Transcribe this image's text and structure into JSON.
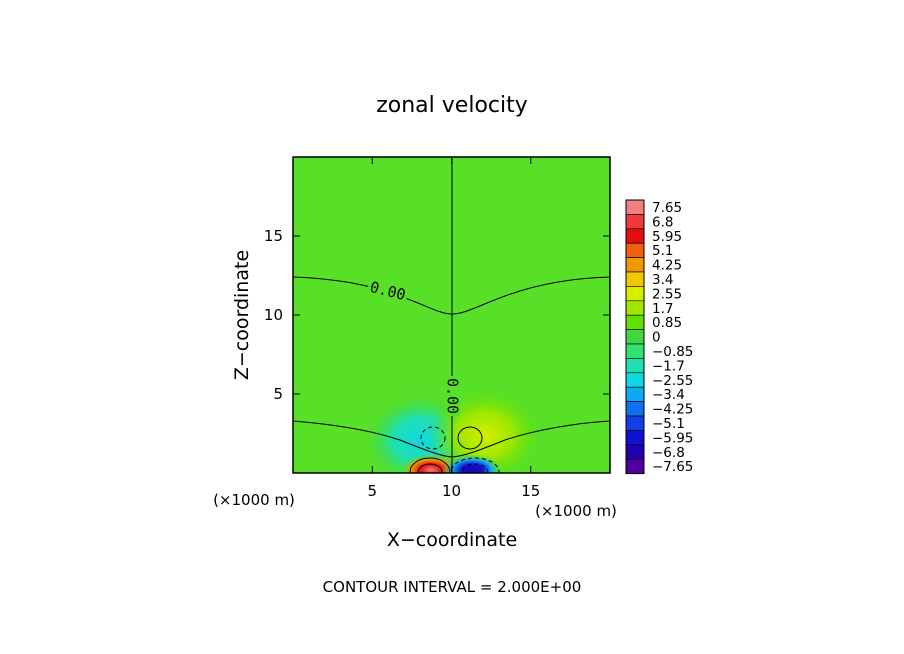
{
  "chart_data": {
    "type": "heatmap",
    "title": "zonal velocity",
    "xlabel": "X−coordinate",
    "ylabel": "Z−coordinate",
    "x_unit_label": "(×1000 m)",
    "z_unit_label": "(×1000 m)",
    "xlim": [
      0,
      20
    ],
    "ylim": [
      0,
      20
    ],
    "x_ticks": [
      "5",
      "10",
      "15"
    ],
    "y_ticks": [
      "5",
      "10",
      "15"
    ],
    "footer": "CONTOUR INTERVAL = 2.000E+00",
    "contour_label": "0.00",
    "colorbar": {
      "labels": [
        "7.65",
        "6.8",
        "5.95",
        "5.1",
        "4.25",
        "3.4",
        "2.55",
        "1.7",
        "0.85",
        "0",
        "−0.85",
        "−1.7",
        "−2.55",
        "−3.4",
        "−4.25",
        "−5.1",
        "−5.95",
        "−6.8",
        "−7.65"
      ],
      "colors": [
        "#f08080",
        "#ee3a3a",
        "#e01010",
        "#f06010",
        "#f09800",
        "#f0c800",
        "#d4ee00",
        "#9ee800",
        "#60e000",
        "#40d840",
        "#30e070",
        "#20e0b0",
        "#10d8e0",
        "#10a8f0",
        "#1070f0",
        "#1040e8",
        "#1010d0",
        "#2000b0",
        "#5000a0"
      ]
    },
    "features": [
      {
        "kind": "positive",
        "x": 8.9,
        "z": 0.4,
        "value": 7.6
      },
      {
        "kind": "negative",
        "x": 11.1,
        "z": 0.4,
        "value": -7.6
      },
      {
        "kind": "negative",
        "x": 8.8,
        "z": 2.4,
        "value": -2.8
      },
      {
        "kind": "positive",
        "x": 11.2,
        "z": 2.3,
        "value": 2.8
      }
    ]
  }
}
